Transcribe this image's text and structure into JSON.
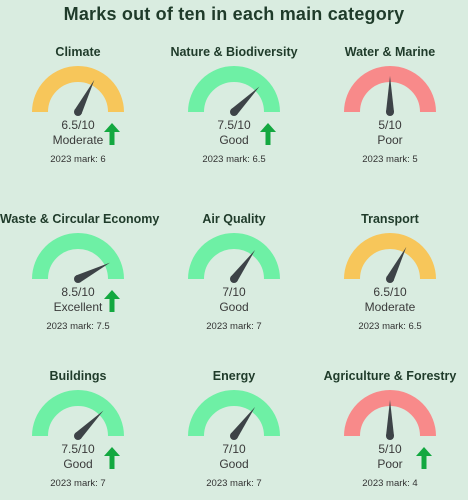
{
  "title": "Marks out of ten in each main category",
  "colors": {
    "good": "#6ef0a5",
    "moderate": "#f7c65a",
    "poor": "#f88a8a",
    "needle": "#3d4347",
    "arrow": "#13a840",
    "background": "#d9ece0"
  },
  "categories": [
    {
      "name": "Climate",
      "score_text": "6.5/10",
      "score": 6.5,
      "rating": "Moderate",
      "band": "moderate",
      "previous": "2023 mark: 6",
      "trend": "up"
    },
    {
      "name": "Nature & Biodiversity",
      "score_text": "7.5/10",
      "score": 7.5,
      "rating": "Good",
      "band": "good",
      "previous": "2023 mark: 6.5",
      "trend": "up"
    },
    {
      "name": "Water & Marine",
      "score_text": "5/10",
      "score": 5,
      "rating": "Poor",
      "band": "poor",
      "previous": "2023 mark: 5",
      "trend": "none"
    },
    {
      "name": "Waste & Circular Economy",
      "score_text": "8.5/10",
      "score": 8.5,
      "rating": "Excellent",
      "band": "good",
      "previous": "2023 mark: 7.5",
      "trend": "up"
    },
    {
      "name": "Air Quality",
      "score_text": "7/10",
      "score": 7,
      "rating": "Good",
      "band": "good",
      "previous": "2023 mark: 7",
      "trend": "none"
    },
    {
      "name": "Transport",
      "score_text": "6.5/10",
      "score": 6.5,
      "rating": "Moderate",
      "band": "moderate",
      "previous": "2023 mark: 6.5",
      "trend": "none"
    },
    {
      "name": "Buildings",
      "score_text": "7.5/10",
      "score": 7.5,
      "rating": "Good",
      "band": "good",
      "previous": "2023 mark: 7",
      "trend": "up"
    },
    {
      "name": "Energy",
      "score_text": "7/10",
      "score": 7,
      "rating": "Good",
      "band": "good",
      "previous": "2023 mark: 7",
      "trend": "none"
    },
    {
      "name": "Agriculture & Forestry",
      "score_text": "5/10",
      "score": 5,
      "rating": "Poor",
      "band": "poor",
      "previous": "2023 mark: 4",
      "trend": "up"
    }
  ]
}
